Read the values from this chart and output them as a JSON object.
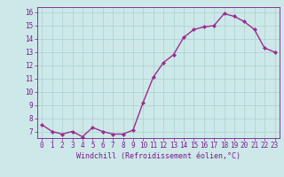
{
  "x": [
    0,
    1,
    2,
    3,
    4,
    5,
    6,
    7,
    8,
    9,
    10,
    11,
    12,
    13,
    14,
    15,
    16,
    17,
    18,
    19,
    20,
    21,
    22,
    23
  ],
  "y": [
    7.5,
    7.0,
    6.8,
    7.0,
    6.6,
    7.3,
    7.0,
    6.8,
    6.8,
    7.1,
    9.2,
    11.1,
    12.2,
    12.8,
    14.1,
    14.7,
    14.9,
    15.0,
    15.9,
    15.7,
    15.3,
    14.7,
    13.3,
    13.0
  ],
  "line_color": "#9b2d8e",
  "marker": "D",
  "marker_size": 2.0,
  "bg_color": "#cde8e8",
  "grid_color": "#b0d4d4",
  "xlabel": "Windchill (Refroidissement éolien,°C)",
  "xlabel_color": "#7b1a8e",
  "tick_color": "#7b1a8e",
  "ylim_min": 6.5,
  "ylim_max": 16.4,
  "xlim_min": -0.5,
  "xlim_max": 23.5,
  "yticks": [
    7,
    8,
    9,
    10,
    11,
    12,
    13,
    14,
    15,
    16
  ],
  "xticks": [
    0,
    1,
    2,
    3,
    4,
    5,
    6,
    7,
    8,
    9,
    10,
    11,
    12,
    13,
    14,
    15,
    16,
    17,
    18,
    19,
    20,
    21,
    22,
    23
  ],
  "tick_fontsize": 5.5,
  "xlabel_fontsize": 6.0,
  "line_width": 1.0
}
